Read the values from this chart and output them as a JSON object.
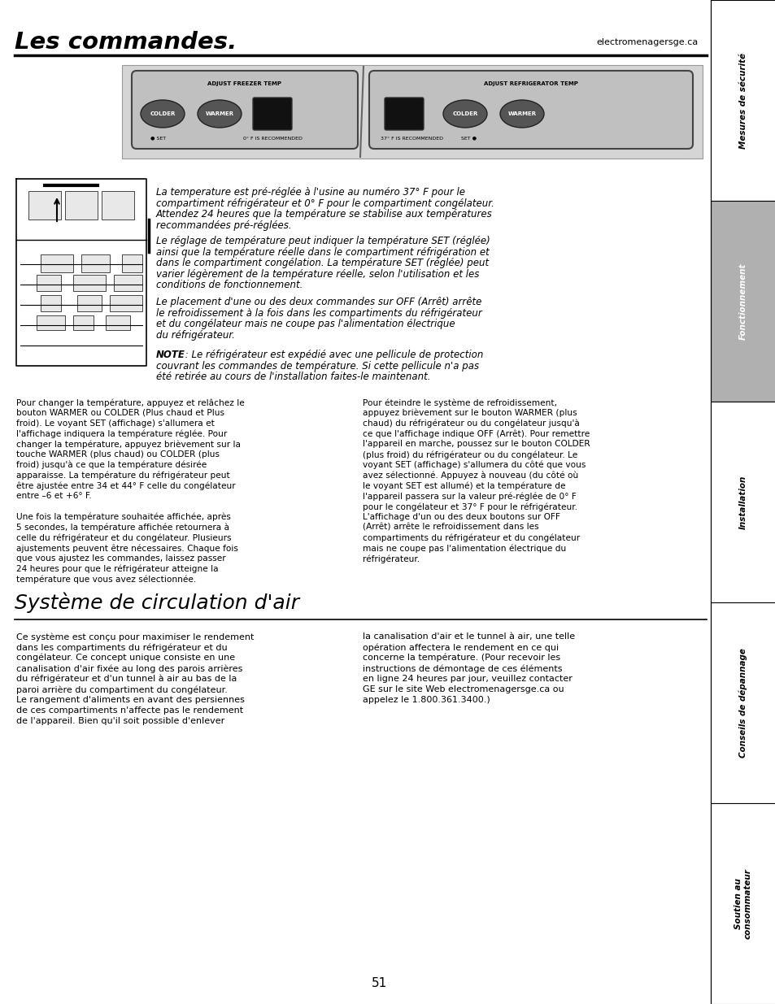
{
  "page_bg": "#ffffff",
  "sidebar_bg_active": "#b0b0b0",
  "title": "Les commandes.",
  "title_url": "electromenagersge.ca",
  "sidebar_labels": [
    "Mesures de sécurité",
    "Fonctionnement",
    "Installation",
    "Conseils de dépannage",
    "Soutien au\nconsommateur"
  ],
  "sidebar_active_index": 1,
  "page_number": "51",
  "section2_title": "Système de circulation d'air",
  "freezer_panel_label": "ADJUST FREEZER TEMP",
  "fridge_panel_label": "ADJUST REFRIGERATOR TEMP",
  "freezer_buttons": [
    "COLDER",
    "WARMER"
  ],
  "fridge_buttons": [
    "COLDER",
    "WARMER"
  ],
  "freezer_bottom_labels": [
    "● SET",
    "0° F IS RECOMMENDED"
  ],
  "fridge_bottom_labels": [
    "37° F IS RECOMMENDED",
    "SET ●"
  ]
}
